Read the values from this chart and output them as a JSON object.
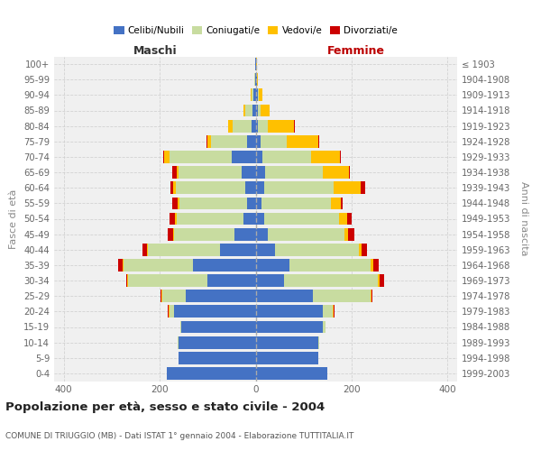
{
  "age_groups": [
    "0-4",
    "5-9",
    "10-14",
    "15-19",
    "20-24",
    "25-29",
    "30-34",
    "35-39",
    "40-44",
    "45-49",
    "50-54",
    "55-59",
    "60-64",
    "65-69",
    "70-74",
    "75-79",
    "80-84",
    "85-89",
    "90-94",
    "95-99",
    "100+"
  ],
  "birth_years": [
    "1999-2003",
    "1994-1998",
    "1989-1993",
    "1984-1988",
    "1979-1983",
    "1974-1978",
    "1969-1973",
    "1964-1968",
    "1959-1963",
    "1954-1958",
    "1949-1953",
    "1944-1948",
    "1939-1943",
    "1934-1938",
    "1929-1933",
    "1924-1928",
    "1919-1923",
    "1914-1918",
    "1909-1913",
    "1904-1908",
    "≤ 1903"
  ],
  "maschi": {
    "celibi": [
      185,
      160,
      160,
      155,
      170,
      145,
      100,
      130,
      75,
      45,
      25,
      18,
      22,
      30,
      50,
      18,
      8,
      6,
      4,
      1,
      1
    ],
    "coniugati": [
      0,
      0,
      2,
      2,
      10,
      50,
      165,
      145,
      150,
      125,
      140,
      140,
      145,
      130,
      130,
      75,
      40,
      15,
      5,
      1,
      0
    ],
    "vedovi": [
      0,
      0,
      0,
      0,
      2,
      2,
      2,
      2,
      2,
      2,
      3,
      5,
      5,
      5,
      10,
      8,
      10,
      5,
      2,
      0,
      0
    ],
    "divorziati": [
      0,
      0,
      0,
      0,
      2,
      2,
      2,
      10,
      8,
      12,
      12,
      10,
      5,
      8,
      2,
      2,
      0,
      0,
      0,
      0,
      0
    ]
  },
  "femmine": {
    "nubili": [
      150,
      130,
      130,
      140,
      140,
      120,
      60,
      70,
      40,
      25,
      18,
      12,
      18,
      20,
      15,
      10,
      5,
      5,
      4,
      2,
      1
    ],
    "coniugate": [
      0,
      0,
      2,
      5,
      20,
      120,
      195,
      170,
      175,
      160,
      155,
      145,
      145,
      120,
      100,
      55,
      20,
      5,
      2,
      0,
      0
    ],
    "vedove": [
      0,
      0,
      0,
      0,
      2,
      2,
      4,
      5,
      5,
      8,
      18,
      20,
      55,
      55,
      60,
      65,
      55,
      20,
      8,
      2,
      1
    ],
    "divorziate": [
      0,
      0,
      0,
      0,
      2,
      2,
      8,
      12,
      12,
      12,
      10,
      5,
      10,
      2,
      2,
      2,
      2,
      0,
      0,
      0,
      0
    ]
  },
  "colors": {
    "celibi": "#4472c4",
    "coniugati": "#c8dca0",
    "vedovi": "#ffc000",
    "divorziati": "#cc0000"
  },
  "title": "Popolazione per età, sesso e stato civile - 2004",
  "subtitle": "COMUNE DI TRIUGGIO (MB) - Dati ISTAT 1° gennaio 2004 - Elaborazione TUTTITALIA.IT",
  "label_maschi": "Maschi",
  "label_femmine": "Femmine",
  "ylabel_left": "Fasce di età",
  "ylabel_right": "Anni di nascita",
  "xlim": 420,
  "bg_color": "#f0f0f0",
  "grid_color": "#cccccc"
}
